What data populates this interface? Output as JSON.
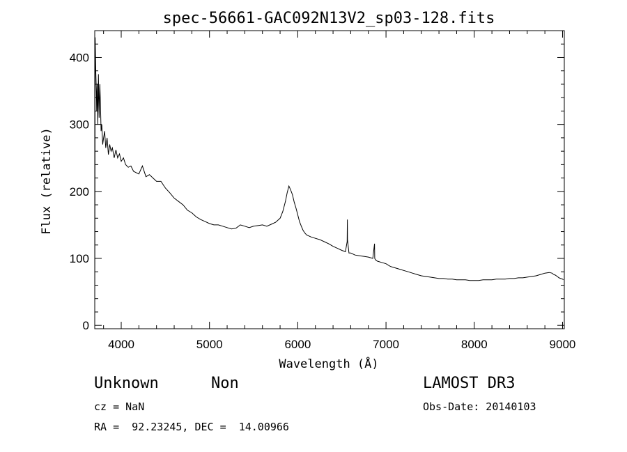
{
  "chart_data": {
    "type": "line",
    "title": "spec-56661-GAC092N13V2_sp03-128.fits",
    "xlabel": "Wavelength (Å)",
    "ylabel": "Flux (relative)",
    "xlim": [
      3700,
      9020
    ],
    "ylim": [
      -5,
      440
    ],
    "x_ticks": [
      4000,
      5000,
      6000,
      7000,
      8000,
      9000
    ],
    "y_ticks": [
      0,
      100,
      200,
      300,
      400
    ],
    "grid": false,
    "series": [
      {
        "x": [
          3700,
          3705,
          3712,
          3718,
          3722,
          3728,
          3735,
          3742,
          3750,
          3758,
          3765,
          3772,
          3780,
          3790,
          3800,
          3812,
          3825,
          3840,
          3855,
          3870,
          3885,
          3900,
          3920,
          3940,
          3960,
          3980,
          4000,
          4025,
          4050,
          4080,
          4110,
          4140,
          4170,
          4200,
          4240,
          4280,
          4320,
          4360,
          4400,
          4450,
          4500,
          4550,
          4600,
          4650,
          4700,
          4750,
          4800,
          4850,
          4900,
          4950,
          5000,
          5050,
          5100,
          5150,
          5200,
          5250,
          5300,
          5350,
          5400,
          5450,
          5500,
          5550,
          5600,
          5650,
          5700,
          5750,
          5800,
          5830,
          5860,
          5880,
          5900,
          5920,
          5940,
          5960,
          5980,
          6000,
          6020,
          6040,
          6060,
          6080,
          6100,
          6150,
          6200,
          6250,
          6300,
          6350,
          6400,
          6450,
          6500,
          6540,
          6560,
          6562,
          6564,
          6580,
          6600,
          6650,
          6700,
          6750,
          6800,
          6850,
          6870,
          6872,
          6880,
          6900,
          6950,
          7000,
          7050,
          7100,
          7150,
          7200,
          7250,
          7300,
          7350,
          7400,
          7450,
          7500,
          7550,
          7600,
          7650,
          7700,
          7750,
          7800,
          7850,
          7900,
          7950,
          8000,
          8050,
          8100,
          8150,
          8200,
          8250,
          8300,
          8350,
          8400,
          8450,
          8500,
          8550,
          8600,
          8650,
          8700,
          8750,
          8800,
          8850,
          8880,
          8900,
          8920,
          8940,
          8960,
          8980,
          9000,
          9010
        ],
        "y": [
          5,
          430,
          380,
          350,
          320,
          360,
          300,
          375,
          310,
          360,
          330,
          290,
          300,
          270,
          280,
          290,
          265,
          280,
          255,
          270,
          260,
          265,
          250,
          262,
          250,
          256,
          245,
          250,
          240,
          236,
          238,
          230,
          228,
          226,
          238,
          222,
          225,
          220,
          215,
          215,
          205,
          198,
          190,
          185,
          180,
          172,
          168,
          162,
          158,
          155,
          152,
          150,
          150,
          148,
          146,
          144,
          145,
          150,
          148,
          146,
          148,
          149,
          150,
          148,
          151,
          154,
          160,
          170,
          185,
          198,
          208,
          202,
          195,
          184,
          175,
          165,
          155,
          148,
          142,
          138,
          135,
          132,
          130,
          128,
          125,
          122,
          118,
          115,
          112,
          110,
          125,
          158,
          128,
          108,
          108,
          105,
          104,
          103,
          102,
          100,
          122,
          100,
          98,
          96,
          94,
          92,
          88,
          86,
          84,
          82,
          80,
          78,
          76,
          74,
          73,
          72,
          71,
          70,
          70,
          69,
          69,
          68,
          68,
          68,
          67,
          67,
          67,
          68,
          68,
          68,
          69,
          69,
          69,
          70,
          70,
          71,
          71,
          72,
          73,
          74,
          76,
          78,
          79,
          78,
          76,
          75,
          73,
          71,
          70,
          69,
          68
        ]
      }
    ]
  },
  "info": {
    "classification": "Unknown",
    "subclass": "Non",
    "survey": "LAMOST DR3",
    "redshift": "cz = NaN",
    "obs_date": "Obs-Date: 20140103",
    "coords": "RA =  92.23245, DEC =  14.00966"
  }
}
